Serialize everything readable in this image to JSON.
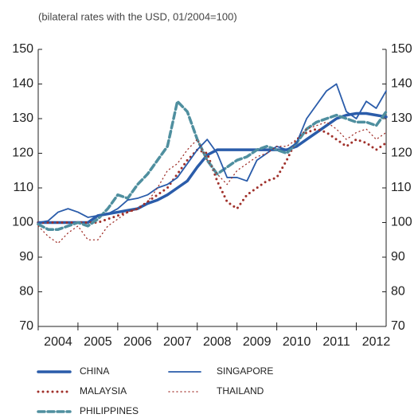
{
  "chart_data": {
    "type": "line",
    "subtitle": "(bilateral rates with the USD, 01/2004=100)",
    "x": [
      2004,
      2004.25,
      2004.5,
      2004.75,
      2005,
      2005.25,
      2005.5,
      2005.75,
      2006,
      2006.25,
      2006.5,
      2006.75,
      2007,
      2007.25,
      2007.5,
      2007.75,
      2008,
      2008.25,
      2008.5,
      2008.75,
      2009,
      2009.25,
      2009.5,
      2009.75,
      2010,
      2010.25,
      2010.5,
      2010.75,
      2011,
      2011.25,
      2011.5,
      2011.75,
      2012,
      2012.25,
      2012.5,
      2012.75
    ],
    "xlim": [
      2004,
      2012.75
    ],
    "xticks": [
      {
        "value": 2004.5,
        "label": "2004"
      },
      {
        "value": 2005.5,
        "label": "2005"
      },
      {
        "value": 2006.5,
        "label": "2006"
      },
      {
        "value": 2007.5,
        "label": "2007"
      },
      {
        "value": 2008.5,
        "label": "2008"
      },
      {
        "value": 2009.5,
        "label": "2009"
      },
      {
        "value": 2010.5,
        "label": "2010"
      },
      {
        "value": 2011.5,
        "label": "2011"
      },
      {
        "value": 2012.5,
        "label": "2012"
      }
    ],
    "ylim": [
      70,
      150
    ],
    "yticks": [
      70,
      80,
      90,
      100,
      110,
      120,
      130,
      140,
      150
    ],
    "y2lim": [
      70,
      150
    ],
    "y2ticks": [
      70,
      80,
      90,
      100,
      110,
      120,
      130,
      140,
      150
    ],
    "series": [
      {
        "name": "CHINA",
        "color": "#2a5caa",
        "width": 3.5,
        "dash": "none",
        "values": [
          100,
          100,
          100,
          100,
          100,
          100,
          102,
          102.5,
          103,
          103.5,
          104,
          105.5,
          106.5,
          108,
          110,
          112,
          116,
          119.5,
          121,
          121,
          121,
          121,
          121,
          121,
          121,
          121,
          122,
          124,
          126,
          128,
          130,
          131,
          131.5,
          131.5,
          131,
          130.5
        ]
      },
      {
        "name": "MALAYSIA",
        "color": "#a0302a",
        "width": 3,
        "dash": "0 6",
        "values": [
          100,
          100,
          100,
          100,
          100,
          100,
          100,
          101,
          102,
          103,
          104,
          106,
          108,
          110,
          114,
          118,
          121,
          120,
          112,
          106,
          104,
          108,
          110,
          112,
          113,
          118,
          124,
          126,
          127,
          126,
          124,
          122,
          124,
          123,
          121,
          123
        ]
      },
      {
        "name": "PHILIPPINES",
        "color": "#4f8f9f",
        "width": 3.5,
        "dash": "8 4",
        "values": [
          99.5,
          98,
          98,
          99,
          100,
          99,
          101,
          104,
          108,
          107,
          111,
          114,
          118,
          122,
          135,
          132,
          124,
          118,
          114,
          116,
          118,
          119,
          121,
          122,
          121,
          120,
          123,
          127,
          129,
          130,
          131,
          130,
          129,
          129,
          128,
          132
        ]
      },
      {
        "name": "SINGAPORE",
        "color": "#2a5caa",
        "width": 1.8,
        "dash": "none",
        "values": [
          100,
          100.5,
          103,
          104,
          103,
          101.5,
          102,
          102.5,
          104,
          106.5,
          107,
          108,
          110,
          111,
          113,
          117,
          121,
          124,
          120,
          113,
          113,
          112,
          118,
          120,
          122,
          121,
          123,
          130,
          134,
          138,
          140,
          132,
          130,
          135,
          133,
          138
        ]
      },
      {
        "name": "THAILAND",
        "color": "#a0302a",
        "width": 1.3,
        "dash": "1 4",
        "values": [
          99,
          96,
          94,
          97,
          99,
          95,
          95,
          99,
          101,
          103,
          104,
          106,
          110,
          115,
          117,
          121,
          124,
          118,
          114,
          111,
          115,
          117,
          119,
          120,
          122,
          122,
          124,
          127,
          128,
          129,
          127,
          124,
          126,
          127,
          124,
          126
        ]
      }
    ]
  }
}
